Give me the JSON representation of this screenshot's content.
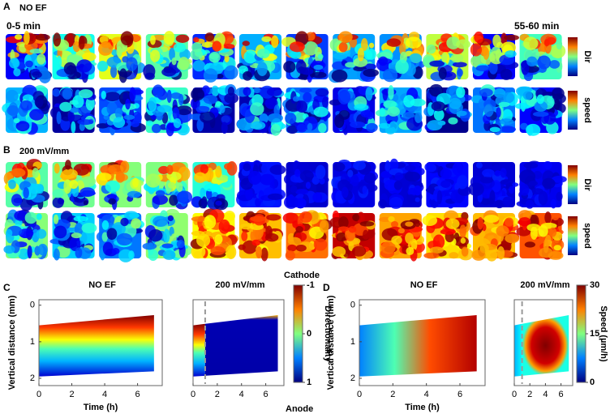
{
  "panel_a": {
    "label": "A",
    "title": "NO EF",
    "first_frame": "0-5 min",
    "last_frame": "55-60 min",
    "colorbar_labels": [
      "Dir",
      "speed"
    ]
  },
  "panel_b": {
    "label": "B",
    "title": "200 mV/mm",
    "colorbar_labels": [
      "Dir",
      "speed"
    ]
  },
  "panel_c": {
    "label": "C",
    "ylabel": "Vertical  distance (mm)",
    "xlabel": "Time (h)",
    "plot_titles": [
      "NO EF",
      "200 mV/mm"
    ],
    "xlim": [
      0,
      7.5
    ],
    "xticks": [
      0,
      2,
      4,
      6
    ],
    "ylim": [
      -0.15,
      2.2
    ],
    "yticks": [
      0,
      1,
      2
    ],
    "ef_onset": 1,
    "colorbar": {
      "label": "Directionality",
      "top_label": "Cathode",
      "bottom_label": "Anode",
      "clim": [
        1,
        -1
      ],
      "ticks": [
        -1,
        0,
        1
      ]
    }
  },
  "panel_d": {
    "label": "D",
    "ylabel": "Vertical  distance (mm)",
    "xlabel": "Time (h)",
    "plot_titles": [
      "NO EF",
      "200 mV/mm"
    ],
    "xlim": [
      0,
      7.5
    ],
    "xticks": [
      0,
      2,
      4,
      6
    ],
    "ylim": [
      -0.15,
      2.2
    ],
    "yticks": [
      0,
      1,
      2
    ],
    "ef_onset": 1,
    "colorbar": {
      "label": "Speed (µm/h)",
      "clim": [
        0,
        30
      ],
      "ticks": [
        0,
        15,
        30
      ]
    }
  }
}
